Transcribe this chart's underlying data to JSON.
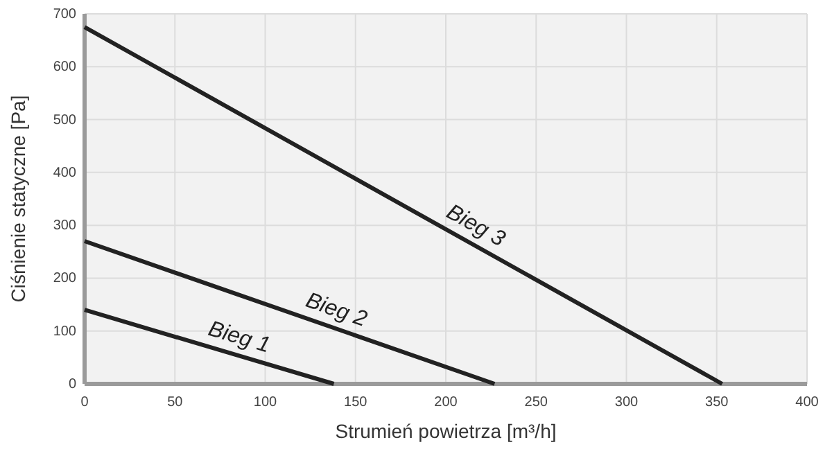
{
  "chart_data": {
    "type": "line",
    "xlabel": "Strumień powietrza [m³/h]",
    "ylabel": "Ciśnienie statyczne [Pa]",
    "xlim": [
      0,
      400
    ],
    "ylim": [
      0,
      700
    ],
    "xticks": [
      0,
      50,
      100,
      150,
      200,
      250,
      300,
      350,
      400
    ],
    "yticks": [
      0,
      100,
      200,
      300,
      400,
      500,
      600,
      700
    ],
    "grid": true,
    "series": [
      {
        "name": "Bieg 1",
        "color": "#222222",
        "x": [
          0,
          138
        ],
        "values": [
          140,
          0
        ]
      },
      {
        "name": "Bieg 2",
        "color": "#222222",
        "x": [
          0,
          227
        ],
        "values": [
          270,
          0
        ]
      },
      {
        "name": "Bieg 3",
        "color": "#222222",
        "x": [
          0,
          353
        ],
        "values": [
          675,
          0
        ]
      }
    ]
  }
}
